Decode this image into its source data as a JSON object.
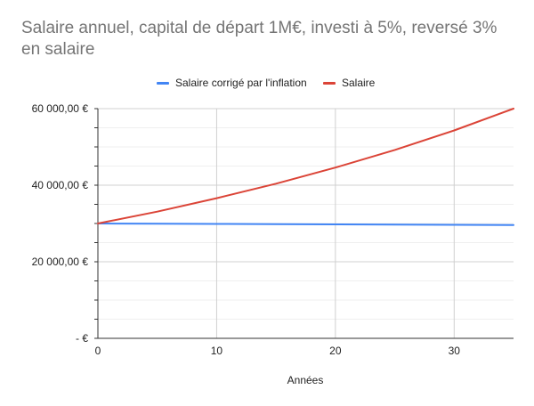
{
  "chart_data": {
    "type": "line",
    "title": "Salaire annuel, capital de départ 1M€, investi à 5%, reversé 3% en salaire",
    "xlabel": "Années",
    "ylabel": "",
    "xlim": [
      0,
      35
    ],
    "ylim": [
      0,
      60000
    ],
    "x_ticks": [
      0,
      10,
      20,
      30
    ],
    "x_tick_labels": [
      "0",
      "10",
      "20",
      "30"
    ],
    "y_ticks": [
      0,
      20000,
      40000,
      60000
    ],
    "y_tick_labels": [
      "-  €",
      "20 000,00  €",
      "40 000,00  €",
      "60 000,00  €"
    ],
    "y_minor_step": 5000,
    "grid": true,
    "legend_position": "top",
    "x": [
      0,
      5,
      10,
      15,
      20,
      25,
      30,
      35
    ],
    "series": [
      {
        "name": "Salaire corrigé par l'inflation",
        "color": "#4285f4",
        "values": [
          30000,
          29940,
          29880,
          29820,
          29760,
          29700,
          29640,
          29580
        ]
      },
      {
        "name": "Salaire",
        "color": "#db4437",
        "values": [
          30000,
          33100,
          36600,
          40400,
          44600,
          49200,
          54300,
          60000
        ]
      }
    ]
  }
}
